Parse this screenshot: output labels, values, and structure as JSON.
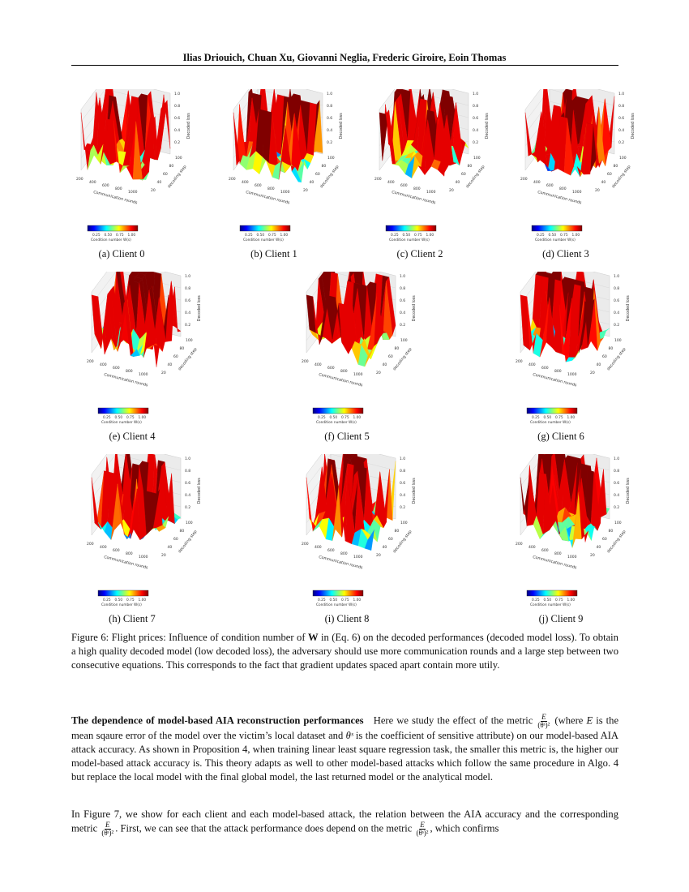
{
  "header": {
    "authors": "Ilias Driouich,  Chuan Xu,  Giovanni Neglia,  Frederic Giroire,  Eoin Thomas"
  },
  "figures": [
    {
      "caption": "(a) Client 0"
    },
    {
      "caption": "(b) Client 1"
    },
    {
      "caption": "(c) Client 2"
    },
    {
      "caption": "(d) Client 3"
    },
    {
      "caption": "(e) Client 4"
    },
    {
      "caption": "(f) Client 5"
    },
    {
      "caption": "(g) Client 6"
    },
    {
      "caption": "(h) Client 7"
    },
    {
      "caption": "(i) Client 8"
    },
    {
      "caption": "(j) Client 9"
    }
  ],
  "chart_data": {
    "type": "surface",
    "xlabel": "Communication rounds",
    "ylabel": "decoding step",
    "zlabel": "Decoded loss",
    "xticks": [
      "200",
      "400",
      "600",
      "800",
      "1000"
    ],
    "yticks": [
      "20",
      "40",
      "60",
      "80",
      "100"
    ],
    "zticks": [
      "0.2",
      "0.4",
      "0.6",
      "0.8",
      "1.0"
    ],
    "colorbar": {
      "label": "Condition number W(s)",
      "ticks": [
        "0.25",
        "0.50",
        "0.75",
        "1.00"
      ],
      "colormap": "jet"
    },
    "grid": true
  },
  "figure_caption": {
    "label": "Figure 6: Flight prices: Influence of condition number of",
    "bold": "W",
    "rest": "in (Eq.  6) on the decoded performances (decoded model loss). To obtain a high quality decoded model (low decoded loss), the adversary should use more communication rounds and a large step between two consecutive equations. This corresponds to the fact that gradient updates spaced apart contain more utily."
  },
  "paragraph1": {
    "heading": "The dependence of model-based AIA reconstruction performances",
    "t1": "Here we study the effect of the metric",
    "t2": "(where",
    "t3": "is the mean sqaure error of the model over the victim’s local dataset and",
    "t4": "is the coefficient of sensitive attribute) on our model-based AIA attack accuracy. As shown in Proposition 4, when training linear least square regression task, the smaller this metric is, the higher our model-based attack accuracy is. This theory adapts as well to other model-based attacks which follow the same procedure in Algo. 4 but replace the local model with the final global model, the last returned model or the analytical model."
  },
  "paragraph2": {
    "t1": "In Figure 7, we show for each client and each model-based attack, the relation between the AIA accuracy and the corresponding metric",
    "t2": ". First, we can see that the attack performance does depend on the metric",
    "t3": ", which confirms"
  },
  "math": {
    "E": "E",
    "den": "(θˢ)²",
    "theta": "θˢ"
  }
}
